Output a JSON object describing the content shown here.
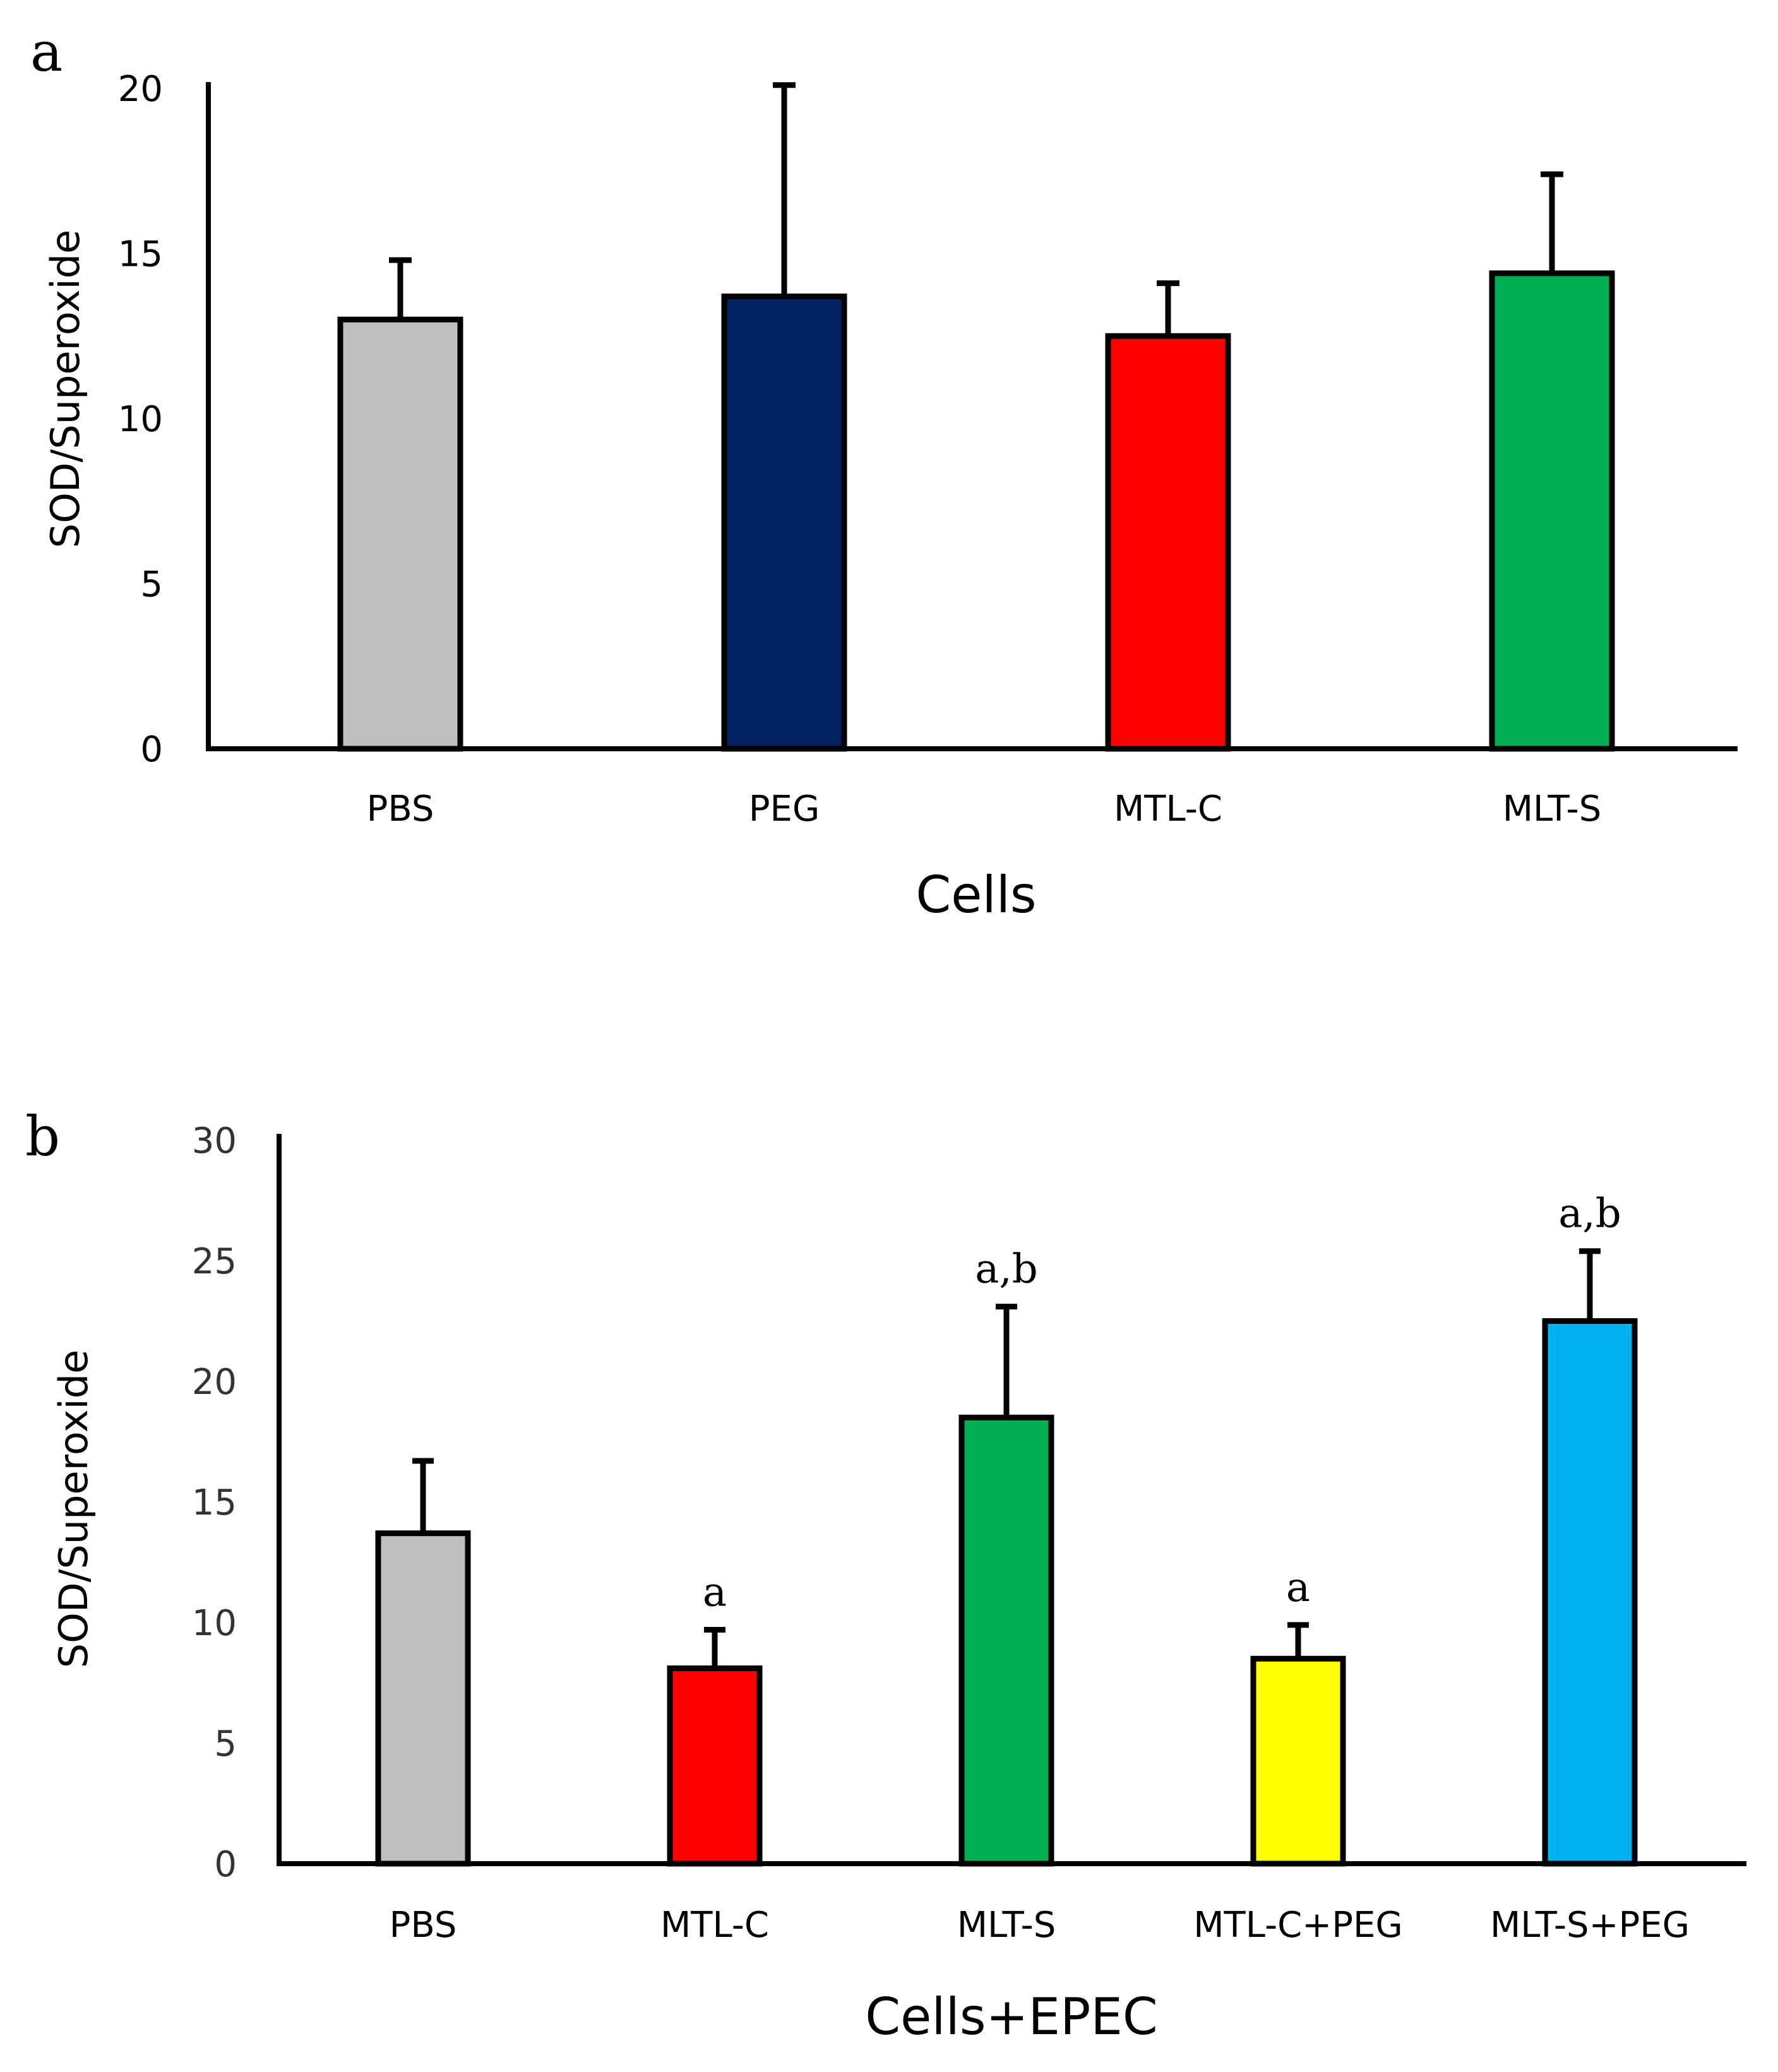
{
  "chart_data": [
    {
      "panel": "a",
      "type": "bar",
      "categories": [
        "PBS",
        "PEG",
        "MTL-C",
        "MLT-S"
      ],
      "values": [
        13,
        13.7,
        12.5,
        14.4
      ],
      "errors": [
        1.8,
        6.4,
        1.6,
        3
      ],
      "colors": [
        "#bfbfbf",
        "#002060",
        "#ff0000",
        "#00b050"
      ],
      "annotations": [
        "",
        "",
        "",
        ""
      ],
      "xlabel": "Cells",
      "ylabel": "SOD/Superoxide",
      "ylim": [
        0,
        20
      ],
      "yticks": [
        0,
        5,
        10,
        15,
        20
      ]
    },
    {
      "panel": "b",
      "type": "bar",
      "categories": [
        "PBS",
        "MTL-C",
        "MLT-S",
        "MTL-C+PEG",
        "MLT-S+PEG"
      ],
      "values": [
        13.7,
        8.1,
        18.5,
        8.5,
        22.5
      ],
      "errors": [
        3,
        1.6,
        4.6,
        1.4,
        2.9
      ],
      "colors": [
        "#bfbfbf",
        "#ff0000",
        "#00b050",
        "#ffff00",
        "#00b0f0"
      ],
      "annotations": [
        "",
        "a",
        "a,b",
        "a",
        "a,b"
      ],
      "xlabel": "Cells+EPEC",
      "ylabel": "SOD/Superoxide",
      "ylim": [
        0,
        30
      ],
      "yticks": [
        0,
        5,
        10,
        15,
        20,
        25,
        30
      ]
    }
  ]
}
